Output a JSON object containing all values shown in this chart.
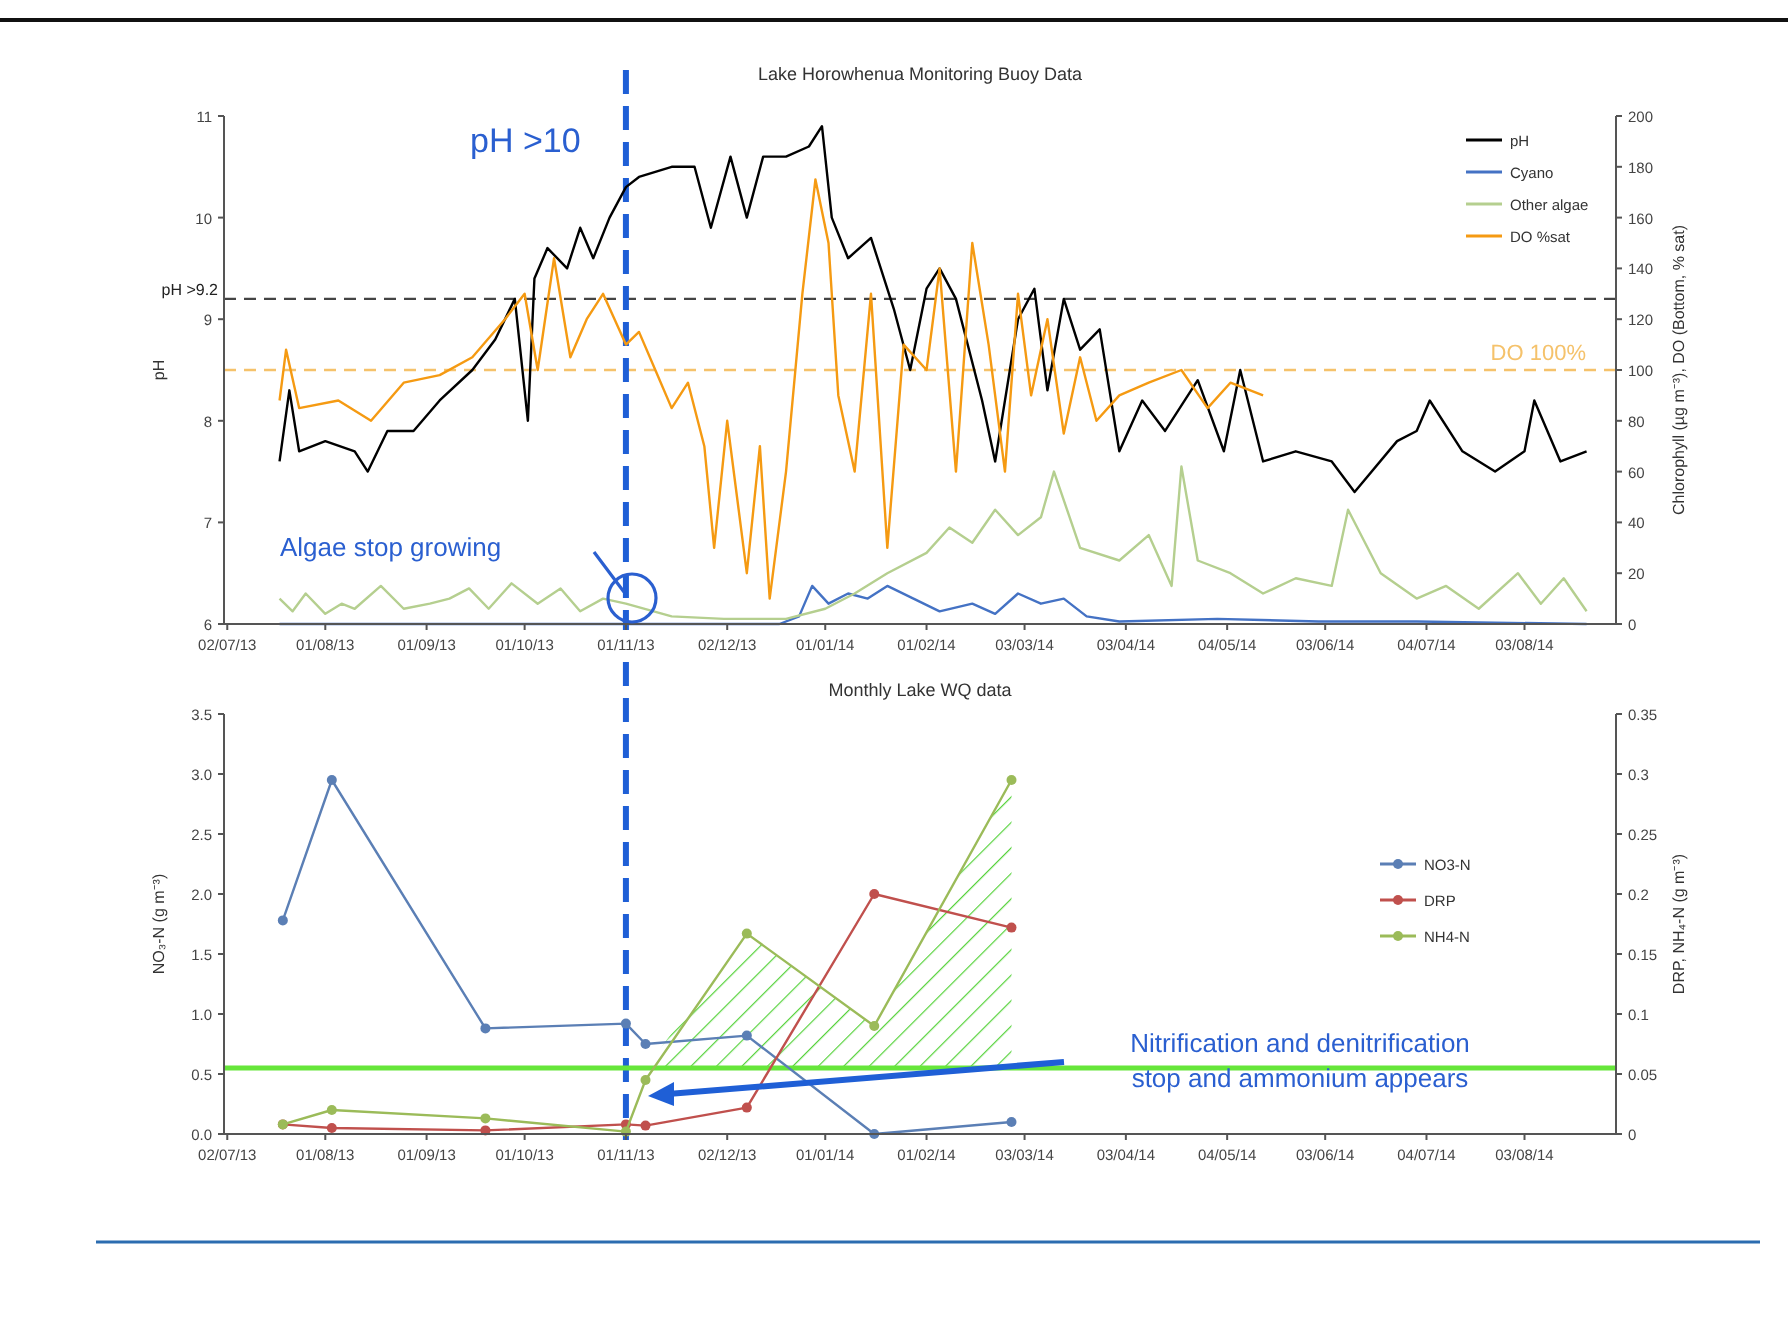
{
  "chart_data": [
    {
      "type": "line",
      "title": "Lake Horowhenua Monitoring Buoy Data",
      "ylabel": "pH",
      "y2label": "Chlorophyll (µg m⁻³), DO (Bottom, % sat)",
      "xlim": [
        "2013-07-01",
        "2014-08-31"
      ],
      "xticks": [
        {
          "value": "2013-07-02",
          "label": "02/07/13"
        },
        {
          "value": "2013-08-01",
          "label": "01/08/13"
        },
        {
          "value": "2013-09-01",
          "label": "01/09/13"
        },
        {
          "value": "2013-10-01",
          "label": "01/10/13"
        },
        {
          "value": "2013-11-01",
          "label": "01/11/13"
        },
        {
          "value": "2013-12-02",
          "label": "02/12/13"
        },
        {
          "value": "2014-01-01",
          "label": "01/01/14"
        },
        {
          "value": "2014-02-01",
          "label": "01/02/14"
        },
        {
          "value": "2014-03-03",
          "label": "03/03/14"
        },
        {
          "value": "2014-04-03",
          "label": "03/04/14"
        },
        {
          "value": "2014-05-04",
          "label": "04/05/14"
        },
        {
          "value": "2014-06-03",
          "label": "03/06/14"
        },
        {
          "value": "2014-07-04",
          "label": "04/07/14"
        },
        {
          "value": "2014-08-03",
          "label": "03/08/14"
        }
      ],
      "ylim": [
        6,
        11
      ],
      "yticks": [
        6,
        7,
        8,
        9,
        10,
        11
      ],
      "y2lim": [
        0,
        200
      ],
      "y2ticks": [
        0,
        20,
        40,
        60,
        80,
        100,
        120,
        140,
        160,
        180,
        200
      ],
      "legend": "top right",
      "marker": "none",
      "series": [
        {
          "name": "pH",
          "color": "#000000",
          "x": [
            "2013-07-18",
            "2013-07-21",
            "2013-07-24",
            "2013-08-01",
            "2013-08-10",
            "2013-08-14",
            "2013-08-20",
            "2013-08-28",
            "2013-09-05",
            "2013-09-15",
            "2013-09-22",
            "2013-09-28",
            "2013-10-02",
            "2013-10-04",
            "2013-10-08",
            "2013-10-14",
            "2013-10-18",
            "2013-10-22",
            "2013-10-27",
            "2013-11-01",
            "2013-11-05",
            "2013-11-15",
            "2013-11-22",
            "2013-11-27",
            "2013-12-03",
            "2013-12-08",
            "2013-12-13",
            "2013-12-20",
            "2013-12-27",
            "2013-12-31",
            "2014-01-03",
            "2014-01-08",
            "2014-01-15",
            "2014-01-22",
            "2014-01-27",
            "2014-02-01",
            "2014-02-05",
            "2014-02-10",
            "2014-02-18",
            "2014-02-22",
            "2014-03-01",
            "2014-03-06",
            "2014-03-10",
            "2014-03-15",
            "2014-03-20",
            "2014-03-26",
            "2014-04-01",
            "2014-04-08",
            "2014-04-15",
            "2014-04-25",
            "2014-05-03",
            "2014-05-08",
            "2014-05-15",
            "2014-05-25",
            "2014-06-05",
            "2014-06-12",
            "2014-06-25",
            "2014-07-01",
            "2014-07-05",
            "2014-07-15",
            "2014-07-25",
            "2014-08-03",
            "2014-08-06",
            "2014-08-14",
            "2014-08-22"
          ],
          "values": [
            7.6,
            8.3,
            7.7,
            7.8,
            7.7,
            7.5,
            7.9,
            7.9,
            8.2,
            8.5,
            8.8,
            9.2,
            8.0,
            9.4,
            9.7,
            9.5,
            9.9,
            9.6,
            10.0,
            10.3,
            10.4,
            10.5,
            10.5,
            9.9,
            10.6,
            10.0,
            10.6,
            10.6,
            10.7,
            10.9,
            10.0,
            9.6,
            9.8,
            9.1,
            8.5,
            9.3,
            9.5,
            9.2,
            8.2,
            7.6,
            9.0,
            9.3,
            8.3,
            9.2,
            8.7,
            8.9,
            7.7,
            8.2,
            7.9,
            8.4,
            7.7,
            8.5,
            7.6,
            7.7,
            7.6,
            7.3,
            7.8,
            7.9,
            8.2,
            7.7,
            7.5,
            7.7,
            8.2,
            7.6,
            7.7
          ]
        },
        {
          "name": "Cyano",
          "color": "#4472c4",
          "axis": "y2",
          "x": [
            "2013-07-18",
            "2013-09-01",
            "2013-11-01",
            "2013-12-18",
            "2013-12-24",
            "2013-12-28",
            "2014-01-02",
            "2014-01-08",
            "2014-01-14",
            "2014-01-20",
            "2014-01-28",
            "2014-02-05",
            "2014-02-15",
            "2014-02-22",
            "2014-03-01",
            "2014-03-08",
            "2014-03-15",
            "2014-03-22",
            "2014-04-01",
            "2014-05-01",
            "2014-06-01",
            "2014-07-01",
            "2014-08-22"
          ],
          "values": [
            0,
            0,
            0,
            0,
            3,
            15,
            8,
            12,
            10,
            15,
            10,
            5,
            8,
            4,
            12,
            8,
            10,
            3,
            1,
            2,
            1,
            1,
            0
          ]
        },
        {
          "name": "Other algae",
          "color": "#b5cf8f",
          "axis": "y2",
          "x": [
            "2013-07-18",
            "2013-07-22",
            "2013-07-26",
            "2013-08-01",
            "2013-08-06",
            "2013-08-10",
            "2013-08-18",
            "2013-08-25",
            "2013-09-02",
            "2013-09-08",
            "2013-09-14",
            "2013-09-20",
            "2013-09-27",
            "2013-10-05",
            "2013-10-12",
            "2013-10-18",
            "2013-10-25",
            "2013-11-01",
            "2013-11-15",
            "2013-12-01",
            "2013-12-20",
            "2014-01-01",
            "2014-01-10",
            "2014-01-20",
            "2014-02-01",
            "2014-02-08",
            "2014-02-15",
            "2014-02-22",
            "2014-03-01",
            "2014-03-08",
            "2014-03-12",
            "2014-03-20",
            "2014-04-01",
            "2014-04-10",
            "2014-04-17",
            "2014-04-20",
            "2014-04-25",
            "2014-05-05",
            "2014-05-15",
            "2014-05-25",
            "2014-06-05",
            "2014-06-10",
            "2014-06-20",
            "2014-07-01",
            "2014-07-10",
            "2014-07-20",
            "2014-08-01",
            "2014-08-08",
            "2014-08-15",
            "2014-08-22"
          ],
          "values": [
            10,
            5,
            12,
            4,
            8,
            6,
            15,
            6,
            8,
            10,
            14,
            6,
            16,
            8,
            14,
            5,
            10,
            8,
            3,
            2,
            2,
            6,
            12,
            20,
            28,
            38,
            32,
            45,
            35,
            42,
            60,
            30,
            25,
            35,
            15,
            62,
            25,
            20,
            12,
            18,
            15,
            45,
            20,
            10,
            15,
            6,
            20,
            8,
            18,
            5
          ]
        },
        {
          "name": "DO %sat",
          "color": "#f59a12",
          "axis": "y2",
          "x": [
            "2013-07-18",
            "2013-07-20",
            "2013-07-24",
            "2013-08-05",
            "2013-08-15",
            "2013-08-25",
            "2013-09-05",
            "2013-09-15",
            "2013-09-25",
            "2013-10-01",
            "2013-10-05",
            "2013-10-10",
            "2013-10-15",
            "2013-10-20",
            "2013-10-25",
            "2013-11-01",
            "2013-11-05",
            "2013-11-10",
            "2013-11-15",
            "2013-11-20",
            "2013-11-25",
            "2013-11-28",
            "2013-12-02",
            "2013-12-05",
            "2013-12-08",
            "2013-12-12",
            "2013-12-15",
            "2013-12-20",
            "2013-12-25",
            "2013-12-29",
            "2014-01-02",
            "2014-01-05",
            "2014-01-10",
            "2014-01-15",
            "2014-01-20",
            "2014-01-25",
            "2014-02-01",
            "2014-02-05",
            "2014-02-10",
            "2014-02-15",
            "2014-02-20",
            "2014-02-25",
            "2014-03-01",
            "2014-03-05",
            "2014-03-10",
            "2014-03-15",
            "2014-03-20",
            "2014-03-25",
            "2014-04-01",
            "2014-04-10",
            "2014-04-20",
            "2014-04-28",
            "2014-05-05",
            "2014-05-15"
          ],
          "values": [
            88,
            108,
            85,
            88,
            80,
            95,
            98,
            105,
            120,
            130,
            100,
            144,
            105,
            120,
            130,
            110,
            115,
            100,
            85,
            95,
            70,
            30,
            80,
            50,
            20,
            70,
            10,
            60,
            130,
            175,
            150,
            90,
            60,
            130,
            30,
            110,
            100,
            140,
            60,
            150,
            110,
            60,
            130,
            90,
            120,
            75,
            105,
            80,
            90,
            95,
            100,
            85,
            95,
            90
          ]
        }
      ],
      "ref_lines": [
        {
          "axis": "y",
          "value": 9.2,
          "label": "pH >9.2",
          "color": "#444444",
          "line_style": "dashed"
        },
        {
          "axis": "y2",
          "value": 100,
          "label": "DO 100%",
          "color": "#f5c26b",
          "line_style": "dashed"
        },
        {
          "axis": "x",
          "value": "2013-11-01",
          "color": "#1f5fd6",
          "line_style": "dashed"
        }
      ],
      "annotations": [
        "pH >10",
        "Algae  stop growing"
      ]
    },
    {
      "type": "line",
      "title": "Monthly Lake WQ data",
      "ylabel": "NO₃-N (g m⁻³)",
      "y2label": "DRP, NH₄-N (g m⁻³)",
      "xlim": [
        "2013-07-01",
        "2014-08-31"
      ],
      "xticks": [
        {
          "value": "2013-07-02",
          "label": "02/07/13"
        },
        {
          "value": "2013-08-01",
          "label": "01/08/13"
        },
        {
          "value": "2013-09-01",
          "label": "01/09/13"
        },
        {
          "value": "2013-10-01",
          "label": "01/10/13"
        },
        {
          "value": "2013-11-01",
          "label": "01/11/13"
        },
        {
          "value": "2013-12-02",
          "label": "02/12/13"
        },
        {
          "value": "2014-01-01",
          "label": "01/01/14"
        },
        {
          "value": "2014-02-01",
          "label": "01/02/14"
        },
        {
          "value": "2014-03-03",
          "label": "03/03/14"
        },
        {
          "value": "2014-04-03",
          "label": "03/04/14"
        },
        {
          "value": "2014-05-04",
          "label": "04/05/14"
        },
        {
          "value": "2014-06-03",
          "label": "03/06/14"
        },
        {
          "value": "2014-07-04",
          "label": "04/07/14"
        },
        {
          "value": "2014-08-03",
          "label": "03/08/14"
        }
      ],
      "ylim": [
        0,
        3.5
      ],
      "yticks": [
        {
          "value": 0,
          "label": "0.0"
        },
        0.5,
        {
          "value": 1,
          "label": "1.0"
        },
        1.5,
        {
          "value": 2,
          "label": "2.0"
        },
        2.5,
        {
          "value": 3,
          "label": "3.0"
        },
        3.5
      ],
      "y2lim": [
        0,
        0.35
      ],
      "y2ticks": [
        0,
        0.05,
        0.1,
        0.15,
        0.2,
        0.25,
        0.3,
        0.35
      ],
      "legend": "right",
      "marker": "circle",
      "x": [
        "2013-07-19",
        "2013-08-03",
        "2013-09-19",
        "2013-11-01",
        "2013-11-07",
        "2013-12-08",
        "2014-01-16",
        "2014-02-27"
      ],
      "series": [
        {
          "name": "NO3-N",
          "color": "#5b7fb5",
          "values": [
            1.78,
            2.95,
            0.88,
            0.92,
            0.75,
            0.82,
            0,
            0.1
          ]
        },
        {
          "name": "DRP",
          "color": "#c0504d",
          "axis": "y2",
          "values": [
            0.008,
            0.005,
            0.003,
            0.008,
            0.007,
            0.022,
            0.2,
            0.172
          ]
        },
        {
          "name": "NH4-N",
          "color": "#9bbb59",
          "axis": "y2",
          "values": [
            0.008,
            0.02,
            0.013,
            0.002,
            0.045,
            0.167,
            0.09,
            0.295
          ]
        }
      ],
      "ref_lines": [
        {
          "axis": "x",
          "value": "2013-11-01",
          "color": "#1f5fd6",
          "line_style": "dashed"
        },
        {
          "axis": "y2",
          "value": 0.055,
          "color": "#66e63a",
          "line_style": "solid"
        }
      ],
      "annotations": [
        "Nitrification and denitrification stop and ammonium appears"
      ]
    }
  ]
}
